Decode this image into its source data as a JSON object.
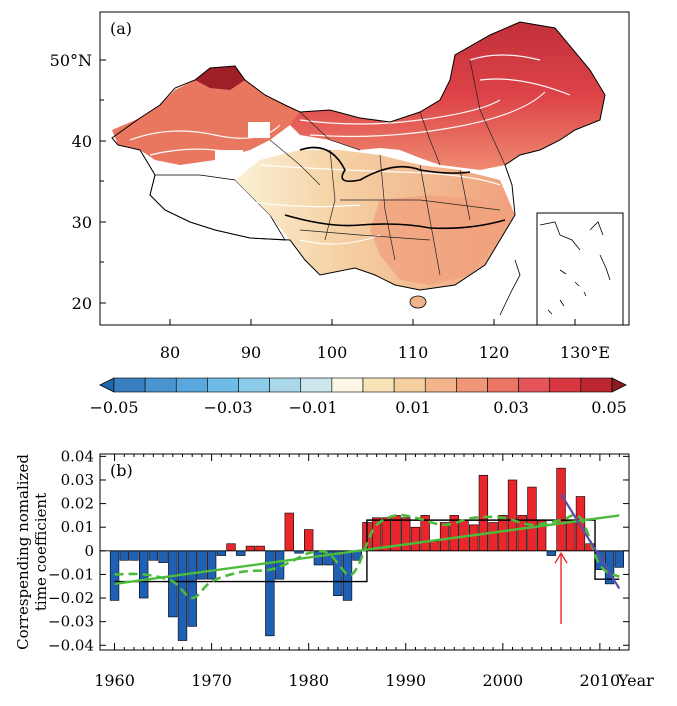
{
  "panel_a": {
    "label": "(a)",
    "lat_ticks": [
      "50°N",
      "40",
      "30",
      "20"
    ],
    "lon_ticks": [
      "80",
      "90",
      "100",
      "110",
      "120",
      "130°E"
    ]
  },
  "colorbar": {
    "tick_labels": [
      "−0.05",
      "−0.03",
      "−0.01",
      "0.01",
      "0.03",
      "0.05"
    ],
    "colors": [
      "#2166ac",
      "#3a7fc1",
      "#4a94d0",
      "#5aa7dd",
      "#6ebbe7",
      "#8ccbea",
      "#aad8ea",
      "#cde6ed",
      "#fbf7e4",
      "#f6e4b8",
      "#f5cfa0",
      "#f2b48a",
      "#ef9678",
      "#ea7565",
      "#e55458",
      "#d8373f",
      "#bb2630",
      "#8e1a22"
    ]
  },
  "chart_data": {
    "type": "bar",
    "panel_label": "(b)",
    "ylabel_line1": "Correspending nomalized",
    "ylabel_line2": "time  coefficient",
    "xlabel": "Year",
    "xlim": [
      1958.5,
      2013
    ],
    "ylim": [
      -0.042,
      0.041
    ],
    "x_ticks": [
      1960,
      1970,
      1980,
      1990,
      2000,
      2010
    ],
    "y_tick_values": [
      0.04,
      0.03,
      0.02,
      0.01,
      0,
      -0.01,
      -0.02,
      -0.03,
      -0.04
    ],
    "y_tick_labels": [
      "0.04",
      "0.03",
      "0.02",
      "0.01",
      "0",
      "−0.01",
      "−0.02",
      "−0.03",
      "−0.04"
    ],
    "years": [
      1960,
      1961,
      1962,
      1963,
      1964,
      1965,
      1966,
      1967,
      1968,
      1969,
      1970,
      1971,
      1972,
      1973,
      1974,
      1975,
      1976,
      1977,
      1978,
      1979,
      1980,
      1981,
      1982,
      1983,
      1984,
      1985,
      1986,
      1987,
      1988,
      1989,
      1990,
      1991,
      1992,
      1993,
      1994,
      1995,
      1996,
      1997,
      1998,
      1999,
      2000,
      2001,
      2002,
      2003,
      2004,
      2005,
      2006,
      2007,
      2008,
      2009,
      2010,
      2011,
      2012
    ],
    "values": [
      -0.021,
      -0.004,
      -0.004,
      -0.02,
      -0.004,
      -0.005,
      -0.028,
      -0.038,
      -0.032,
      -0.012,
      -0.012,
      -0.002,
      0.003,
      -0.002,
      0.002,
      0.002,
      -0.036,
      -0.012,
      0.016,
      -0.001,
      0.009,
      -0.006,
      -0.006,
      -0.019,
      -0.021,
      -0.004,
      0.012,
      0.014,
      0.014,
      0.015,
      0.014,
      0.01,
      0.015,
      0.004,
      0.012,
      0.015,
      0.013,
      0.011,
      0.032,
      0.012,
      0.015,
      0.03,
      0.015,
      0.027,
      0.013,
      -0.002,
      0.035,
      0.013,
      0.023,
      0.003,
      -0.008,
      -0.014,
      -0.007
    ],
    "positive_color": "#e8262b",
    "negative_color": "#1f5fb4",
    "step_segments": [
      {
        "x_start": 1960,
        "x_end": 1986,
        "value": -0.013
      },
      {
        "x_start": 1986,
        "x_end": 2009.5,
        "value": 0.013
      },
      {
        "x_start": 2009.5,
        "x_end": 2012,
        "value": -0.012
      }
    ],
    "step_color": "#000000",
    "trend_line": {
      "x": [
        1960,
        2012
      ],
      "y": [
        -0.014,
        0.015
      ],
      "color": "#4cbb3c"
    },
    "smooth_curve": {
      "x": [
        1960,
        1963,
        1966,
        1968,
        1970,
        1973,
        1976,
        1978,
        1980,
        1982,
        1984,
        1985,
        1986,
        1987,
        1989,
        1991,
        1994,
        1997,
        2000,
        2003,
        2006,
        2008,
        2010,
        2012
      ],
      "y": [
        -0.01,
        -0.01,
        -0.013,
        -0.02,
        -0.013,
        -0.009,
        -0.008,
        -0.005,
        -0.001,
        -0.001,
        -0.01,
        -0.007,
        0.003,
        0.011,
        0.015,
        0.014,
        0.011,
        0.014,
        0.014,
        0.011,
        0.013,
        0.014,
        -0.006,
        -0.011
      ],
      "color": "#4cbb3c"
    },
    "late_trend": {
      "x": [
        2006,
        2012
      ],
      "y": [
        0.024,
        -0.016
      ],
      "color": "#5a4fa8"
    },
    "arrow": {
      "x": 2006,
      "y_from": -0.031,
      "y_to": -0.001,
      "color": "#e8262b"
    }
  }
}
